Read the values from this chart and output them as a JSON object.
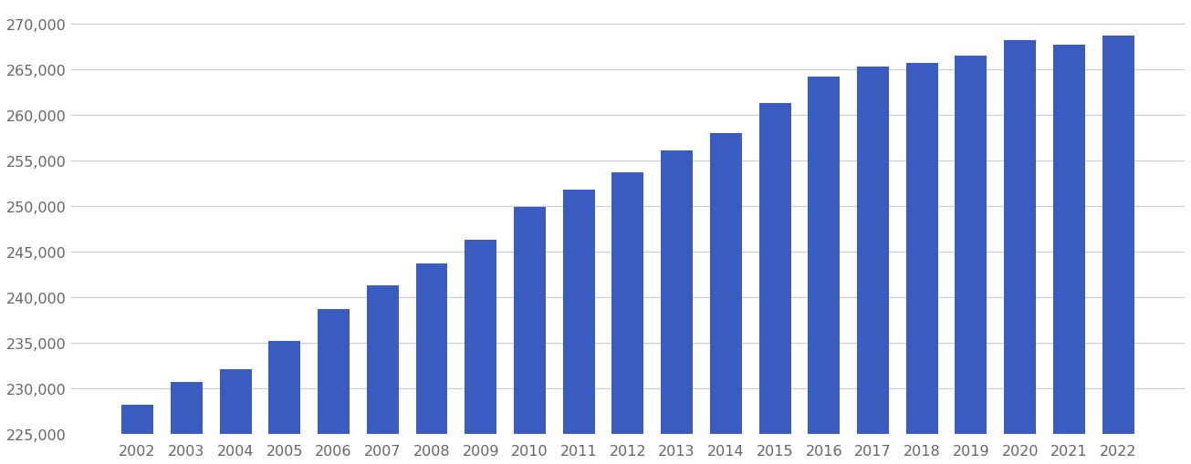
{
  "years": [
    "2002",
    "2003",
    "2004",
    "2005",
    "2006",
    "2007",
    "2008",
    "2009",
    "2010",
    "2011",
    "2012",
    "2013",
    "2014",
    "2015",
    "2016",
    "2017",
    "2018",
    "2019",
    "2020",
    "2021",
    "2022"
  ],
  "values": [
    228200,
    230700,
    232100,
    235200,
    238700,
    241300,
    243700,
    246300,
    249900,
    251800,
    253700,
    256100,
    258000,
    261300,
    264200,
    265300,
    265700,
    266500,
    268200,
    267700,
    268700
  ],
  "bar_color": "#3a5bbf",
  "background_color": "#ffffff",
  "grid_color": "#cccccc",
  "ylim_min": 225000,
  "ylim_max": 272000,
  "ytick_start": 225000,
  "ytick_step": 5000,
  "tick_color": "#666666",
  "tick_fontsize": 11.5,
  "bar_width": 0.65
}
